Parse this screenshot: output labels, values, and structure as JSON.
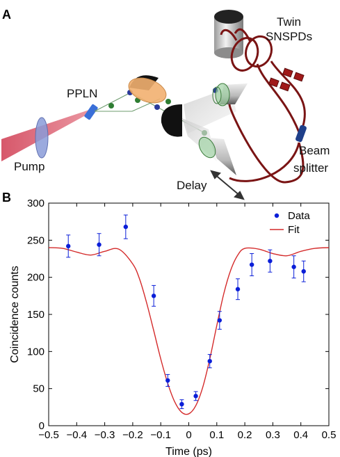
{
  "panel_a": {
    "letter": "A",
    "labels": {
      "ppln": "PPLN",
      "pump": "Pump",
      "twin_line1": "Twin",
      "twin_line2": "SNSPDs",
      "beam_line1": "Beam",
      "beam_line2": "splitter",
      "delay": "Delay"
    },
    "colors": {
      "pump_beam": "#d2455a",
      "crystal": "#3a6fd8",
      "fiber": "#7a1414",
      "lens": "#8a9bd8",
      "mirror": "#111111"
    }
  },
  "panel_b": {
    "letter": "B"
  },
  "chart_data": {
    "type": "scatter",
    "xlabel": "Time (ps)",
    "ylabel": "Coincidence counts",
    "xlim": [
      -0.5,
      0.5
    ],
    "ylim": [
      0,
      300
    ],
    "x_ticks": [
      -0.5,
      -0.4,
      -0.3,
      -0.2,
      -0.1,
      0,
      0.1,
      0.2,
      0.3,
      0.4,
      0.5
    ],
    "x_tick_labels": [
      "−0.5",
      "−0.4",
      "−0.3",
      "−0.2",
      "−0.1",
      "0",
      "0.1",
      "0.2",
      "0.3",
      "0.4",
      "0.5"
    ],
    "y_ticks": [
      0,
      50,
      100,
      150,
      200,
      250,
      300
    ],
    "y_tick_labels": [
      "0",
      "50",
      "100",
      "150",
      "200",
      "250",
      "300"
    ],
    "grid": false,
    "legend_position": "top-right",
    "series": [
      {
        "name": "Data",
        "kind": "points-with-error-bars",
        "color": "#0a1ed8",
        "x": [
          -0.43,
          -0.32,
          -0.225,
          -0.125,
          -0.075,
          -0.025,
          0.025,
          0.075,
          0.11,
          0.175,
          0.225,
          0.29,
          0.375,
          0.41
        ],
        "y": [
          242,
          244,
          268,
          175,
          61,
          29,
          40,
          87,
          142,
          184,
          217,
          222,
          214,
          208
        ],
        "err": [
          15,
          15,
          16,
          14,
          8,
          6,
          6,
          9,
          12,
          14,
          15,
          15,
          15,
          14
        ]
      },
      {
        "name": "Fit",
        "kind": "line",
        "color": "#d42a2a",
        "x": [
          -0.5,
          -0.45,
          -0.4,
          -0.35,
          -0.3,
          -0.25,
          -0.2,
          -0.175,
          -0.15,
          -0.125,
          -0.1,
          -0.075,
          -0.05,
          -0.025,
          0,
          0.025,
          0.05,
          0.075,
          0.1,
          0.125,
          0.15,
          0.175,
          0.2,
          0.25,
          0.3,
          0.35,
          0.4,
          0.45,
          0.5
        ],
        "y": [
          240,
          239,
          234,
          230,
          235,
          238,
          218,
          197,
          165,
          128,
          90,
          57,
          32,
          18,
          16,
          27,
          52,
          90,
          135,
          178,
          210,
          230,
          239,
          238,
          232,
          229,
          235,
          239,
          240
        ]
      }
    ]
  }
}
